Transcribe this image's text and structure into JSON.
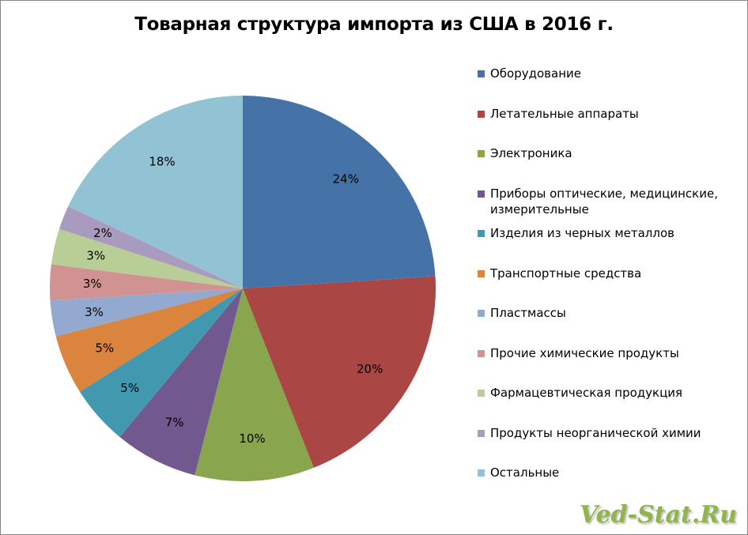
{
  "chart_data": {
    "type": "pie",
    "title": "Товарная структура импорта из США в 2016 г.",
    "legend_position": "right",
    "slices": [
      {
        "name": "Оборудование",
        "value": 24,
        "label": "24%",
        "color": "#4572a7"
      },
      {
        "name": "Летательные аппараты",
        "value": 20,
        "label": "20%",
        "color": "#aa4643"
      },
      {
        "name": "Электроника",
        "value": 10,
        "label": "10%",
        "color": "#89a54e"
      },
      {
        "name": "Приборы оптические, медицинские, измерительные",
        "value": 7,
        "label": "7%",
        "color": "#71588f"
      },
      {
        "name": "Изделия из черных металлов",
        "value": 5,
        "label": "5%",
        "color": "#4198af"
      },
      {
        "name": "Транспортные средства",
        "value": 5,
        "label": "5%",
        "color": "#db843d"
      },
      {
        "name": "Пластмассы",
        "value": 3,
        "label": "3%",
        "color": "#93a9cf"
      },
      {
        "name": "Прочие химические продукты",
        "value": 3,
        "label": "3%",
        "color": "#d19392"
      },
      {
        "name": "Фармацевтическая продукция",
        "value": 3,
        "label": "3%",
        "color": "#b9cd96"
      },
      {
        "name": "Продукты неорганической химии",
        "value": 2,
        "label": "2%",
        "color": "#a99bbd"
      },
      {
        "name": "Остальные",
        "value": 18,
        "label": "18%",
        "color": "#92c3d4"
      }
    ]
  },
  "watermark": "Ved-Stat.Ru"
}
